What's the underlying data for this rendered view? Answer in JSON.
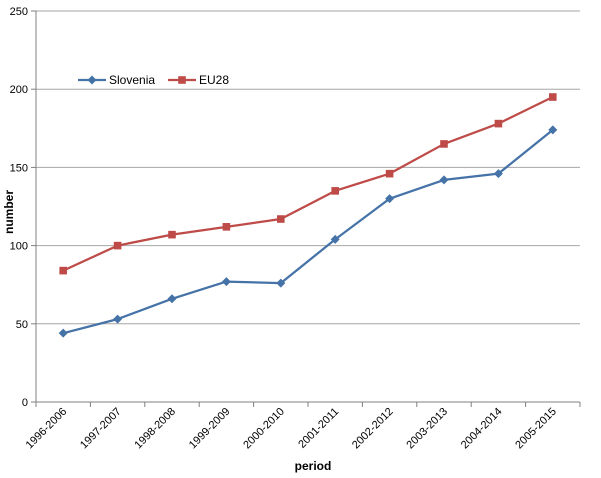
{
  "chart_data": {
    "type": "line",
    "xlabel": "period",
    "ylabel": "number",
    "ylim": [
      0,
      250
    ],
    "yticks": [
      0,
      50,
      100,
      150,
      200,
      250
    ],
    "grid": "horizontal",
    "legend_position": "top-left",
    "categories": [
      "1996-2006",
      "1997-2007",
      "1998-2008",
      "1999-2009",
      "2000-2010",
      "2001-2011",
      "2002-2012",
      "2003-2013",
      "2004-2014",
      "2005-2015"
    ],
    "series": [
      {
        "name": "Slovenia",
        "color": "#4572A7",
        "marker": "diamond",
        "values": [
          44,
          53,
          66,
          77,
          76,
          104,
          130,
          142,
          146,
          174
        ]
      },
      {
        "name": "EU28",
        "color": "#BE4B48",
        "marker": "square",
        "values": [
          84,
          100,
          107,
          112,
          117,
          135,
          146,
          165,
          178,
          195
        ]
      }
    ]
  }
}
